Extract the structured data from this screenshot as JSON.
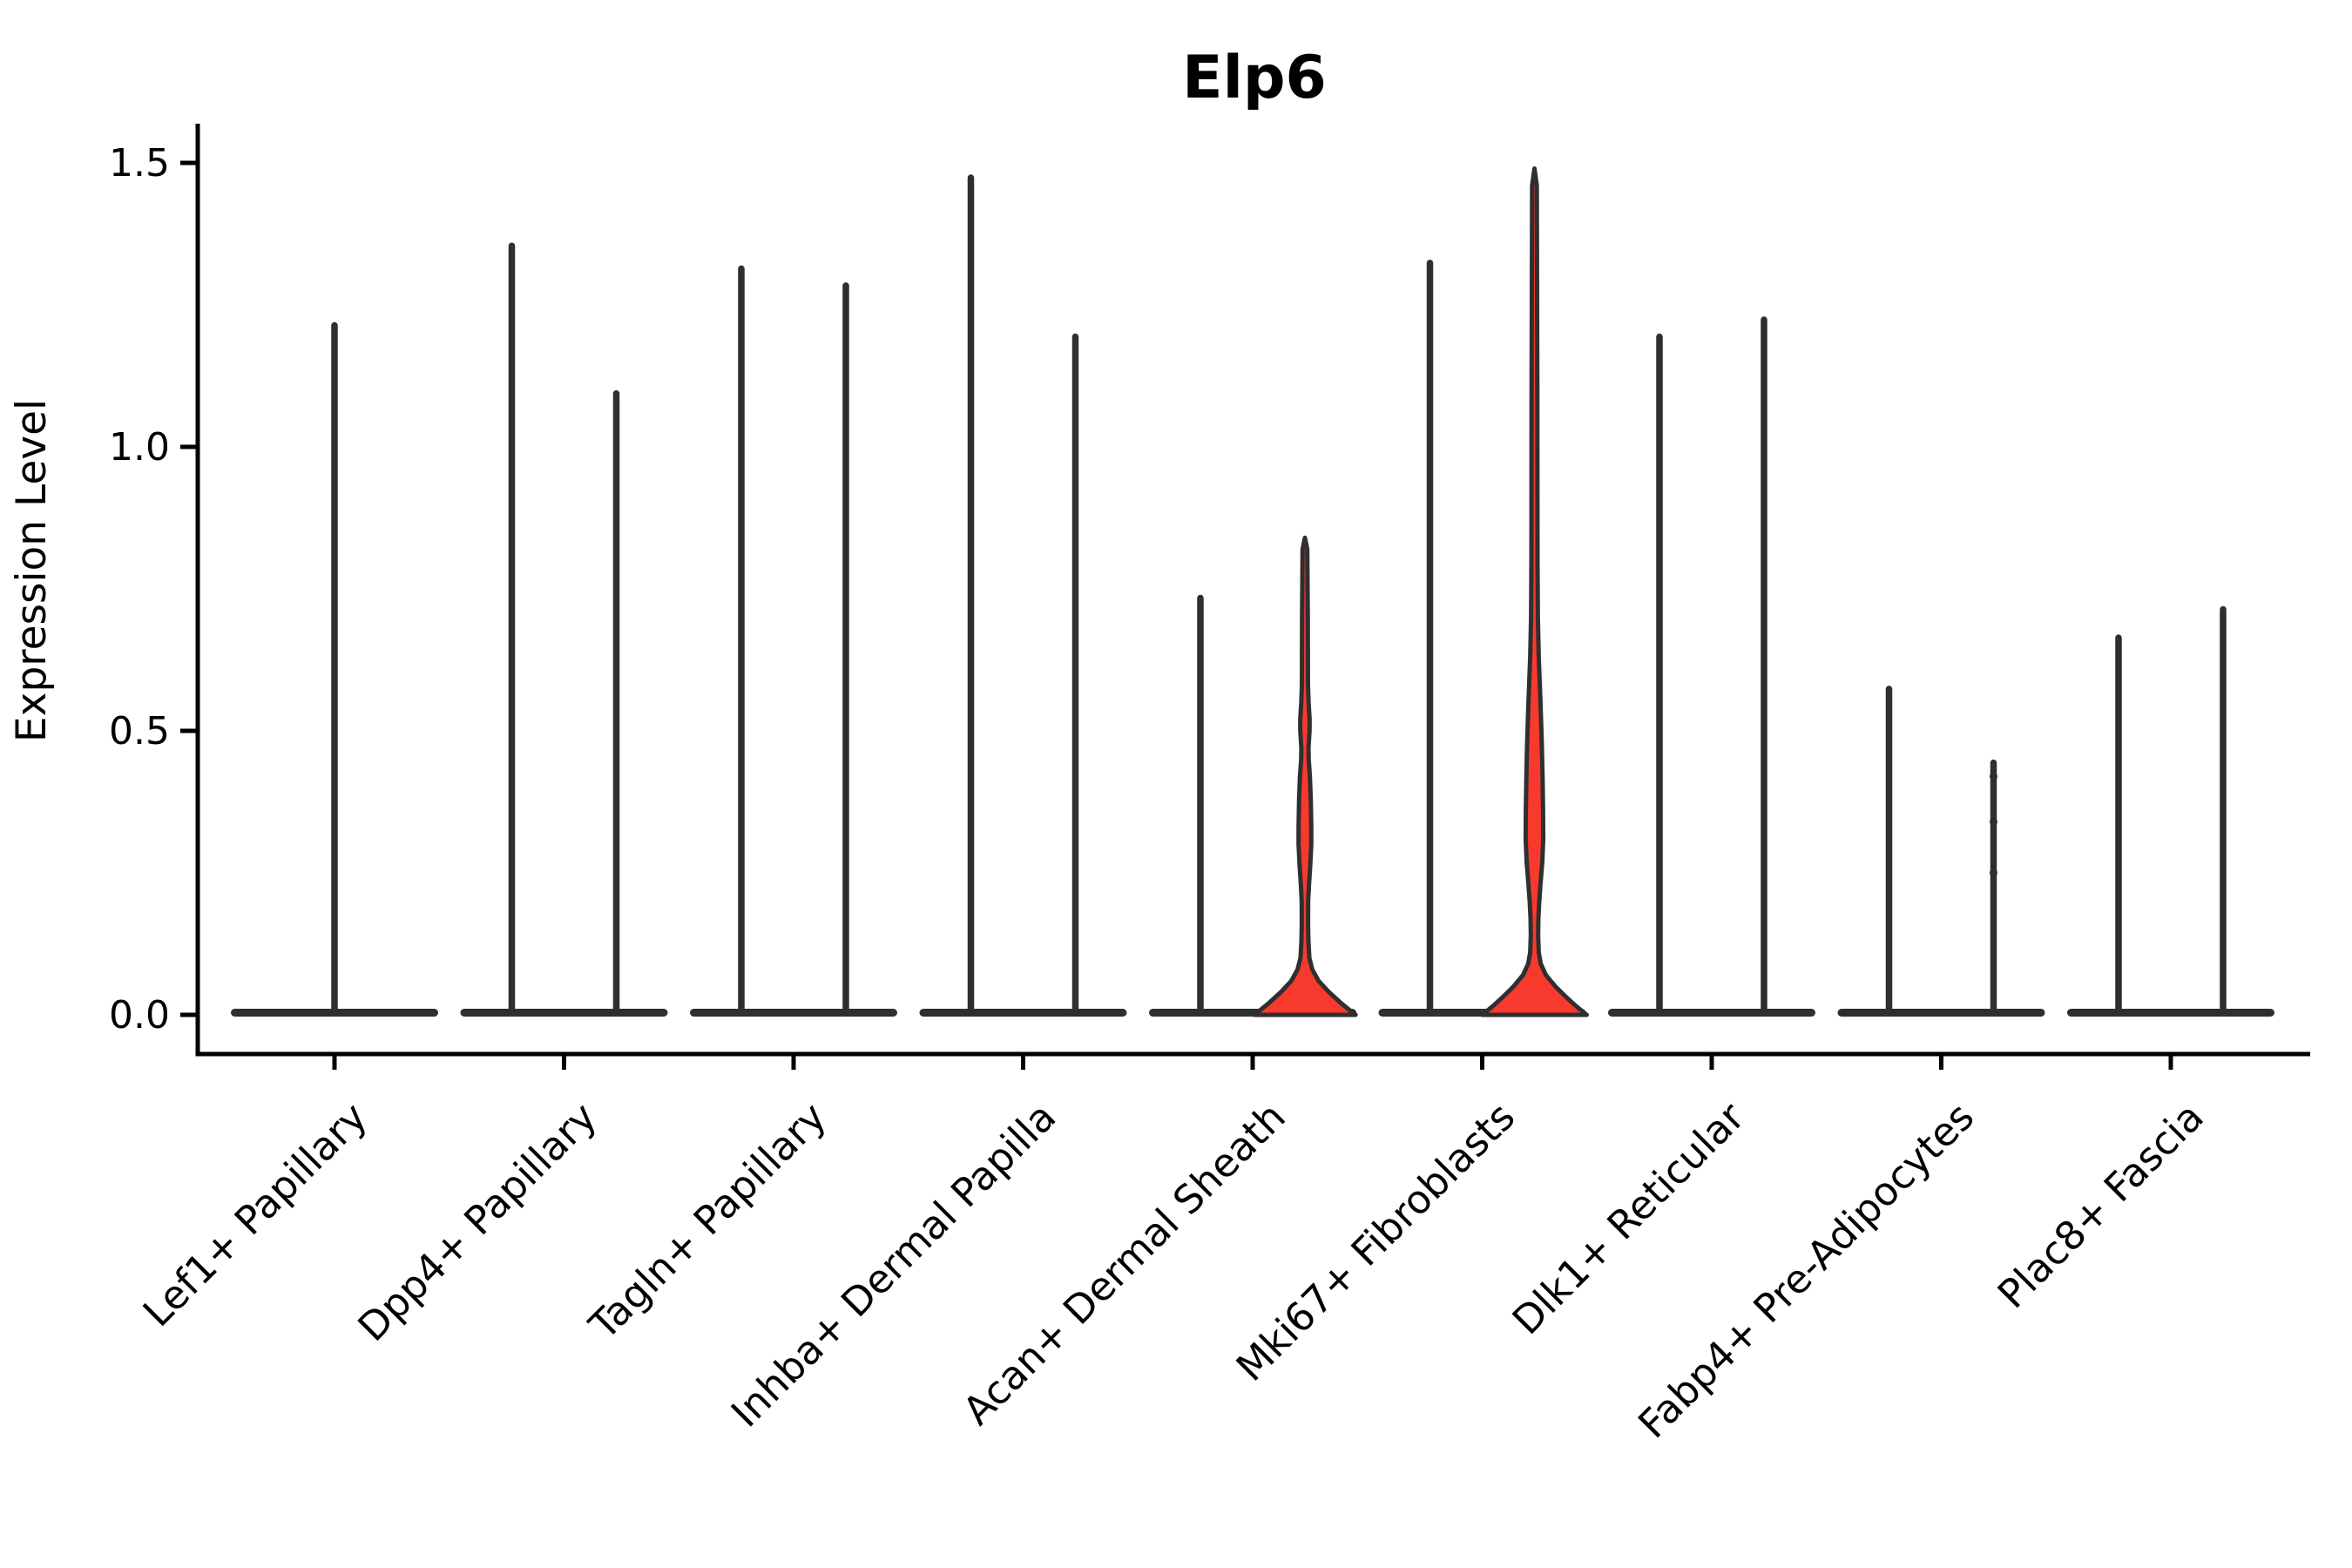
{
  "title_block": {
    "title": "Elp6"
  },
  "colors": {
    "red_fill": "#f8392d",
    "violin_outline": "#2f2f2f",
    "axis": "#000000",
    "background": "#ffffff"
  },
  "chart_data": {
    "type": "violin",
    "title": "Elp6",
    "ylabel": "Expression Level",
    "xlabel": "",
    "ylim": [
      -0.07,
      1.57
    ],
    "grid": false,
    "legend": "none",
    "yticks": [
      {
        "label": "0.0",
        "value": 0.0
      },
      {
        "label": "0.5",
        "value": 0.5
      },
      {
        "label": "1.0",
        "value": 1.0
      },
      {
        "label": "1.5",
        "value": 1.5
      }
    ],
    "categories": [
      "Lef1+ Papillary",
      "Dpp4+ Papillary",
      "Tagln+ Papillary",
      "Inhba+ Dermal Papilla",
      "Acan+ Dermal Sheath",
      "Mki67+ Fibroblasts",
      "Dlk1+ Reticular",
      "Fabp4+ Pre-Adipocytes",
      "Plac8+ Fascia"
    ],
    "violins_per_category_note": "category 0 has one centered violin; all others have a left and right violin sharing one flat base at expression 0",
    "violins": [
      {
        "category_index": 0,
        "side": "center",
        "max": 1.22,
        "color": "plain"
      },
      {
        "category_index": 1,
        "side": "left",
        "max": 1.36,
        "color": "plain"
      },
      {
        "category_index": 1,
        "side": "right",
        "max": 1.1,
        "color": "plain"
      },
      {
        "category_index": 2,
        "side": "left",
        "max": 1.32,
        "color": "plain"
      },
      {
        "category_index": 2,
        "side": "right",
        "max": 1.29,
        "color": "plain"
      },
      {
        "category_index": 3,
        "side": "left",
        "max": 1.48,
        "color": "plain"
      },
      {
        "category_index": 3,
        "side": "right",
        "max": 1.2,
        "color": "plain"
      },
      {
        "category_index": 4,
        "side": "left",
        "max": 0.74,
        "color": "plain",
        "beads": [
          0.13,
          0.21,
          0.29,
          0.37,
          0.45,
          0.53
        ],
        "bead_radius": 3.2
      },
      {
        "category_index": 4,
        "side": "right",
        "max": 0.84,
        "color": "red",
        "profile": [
          [
            0.84,
            0.0
          ],
          [
            0.82,
            0.045
          ],
          [
            0.7,
            0.055
          ],
          [
            0.58,
            0.058
          ],
          [
            0.55,
            0.07
          ],
          [
            0.52,
            0.09
          ],
          [
            0.5,
            0.088
          ],
          [
            0.47,
            0.068
          ],
          [
            0.45,
            0.072
          ],
          [
            0.42,
            0.095
          ],
          [
            0.38,
            0.112
          ],
          [
            0.33,
            0.122
          ],
          [
            0.3,
            0.122
          ],
          [
            0.26,
            0.1
          ],
          [
            0.23,
            0.078
          ],
          [
            0.2,
            0.062
          ],
          [
            0.16,
            0.06
          ],
          [
            0.13,
            0.066
          ],
          [
            0.1,
            0.085
          ],
          [
            0.08,
            0.14
          ],
          [
            0.06,
            0.26
          ],
          [
            0.04,
            0.46
          ],
          [
            0.02,
            0.7
          ],
          [
            0.008,
            0.86
          ],
          [
            0.0,
            0.97
          ]
        ]
      },
      {
        "category_index": 5,
        "side": "left",
        "max": 1.33,
        "color": "plain"
      },
      {
        "category_index": 5,
        "side": "right",
        "max": 1.49,
        "color": "red",
        "profile": [
          [
            1.49,
            0.0
          ],
          [
            1.46,
            0.045
          ],
          [
            1.1,
            0.055
          ],
          [
            0.8,
            0.058
          ],
          [
            0.7,
            0.065
          ],
          [
            0.63,
            0.082
          ],
          [
            0.55,
            0.115
          ],
          [
            0.48,
            0.14
          ],
          [
            0.42,
            0.155
          ],
          [
            0.36,
            0.165
          ],
          [
            0.31,
            0.168
          ],
          [
            0.27,
            0.15
          ],
          [
            0.23,
            0.115
          ],
          [
            0.2,
            0.092
          ],
          [
            0.17,
            0.075
          ],
          [
            0.14,
            0.07
          ],
          [
            0.11,
            0.082
          ],
          [
            0.09,
            0.12
          ],
          [
            0.07,
            0.22
          ],
          [
            0.05,
            0.4
          ],
          [
            0.03,
            0.62
          ],
          [
            0.015,
            0.8
          ],
          [
            0.0,
            1.0
          ]
        ]
      },
      {
        "category_index": 6,
        "side": "left",
        "max": 1.2,
        "color": "plain"
      },
      {
        "category_index": 6,
        "side": "right",
        "max": 1.23,
        "color": "plain"
      },
      {
        "category_index": 7,
        "side": "left",
        "max": 0.58,
        "color": "plain"
      },
      {
        "category_index": 7,
        "side": "right",
        "max": 0.45,
        "color": "plain",
        "beads": [
          0.25,
          0.34,
          0.42
        ],
        "bead_radius": 4.5
      },
      {
        "category_index": 8,
        "side": "left",
        "max": 0.67,
        "color": "plain"
      },
      {
        "category_index": 8,
        "side": "right",
        "max": 0.72,
        "color": "plain"
      }
    ]
  }
}
